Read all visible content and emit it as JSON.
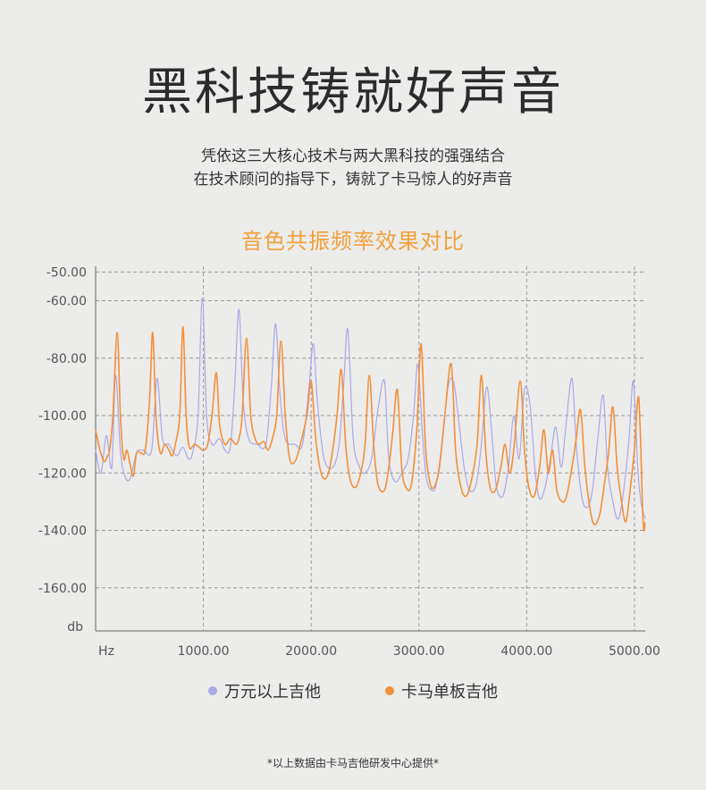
{
  "header": {
    "title": "黑科技铸就好声音",
    "subtitle_line1": "凭依这三大核心技术与两大黑科技的强强结合",
    "subtitle_line2": "在技术顾问的指导下，铸就了卡马惊人的好声音"
  },
  "chart_title": "音色共振频率效果对比",
  "footnote": "*以上数据由卡马吉他研发中心提供*",
  "colors": {
    "series_premium": "#a9a8e6",
    "series_kama": "#f3903a",
    "title_accent": "#f2a03a"
  },
  "chart_data": {
    "type": "line",
    "title": "音色共振频率效果对比",
    "xlabel": "Hz",
    "ylabel": "db",
    "xlim": [
      0,
      5100
    ],
    "ylim": [
      -175,
      -48
    ],
    "x_ticks": [
      {
        "value": 1000,
        "label": "1000.00"
      },
      {
        "value": 2000,
        "label": "2000.00"
      },
      {
        "value": 3000,
        "label": "3000.00"
      },
      {
        "value": 4000,
        "label": "4000.00"
      },
      {
        "value": 5000,
        "label": "5000.00"
      }
    ],
    "y_ticks": [
      {
        "value": -50,
        "label": "-50.00"
      },
      {
        "value": -60,
        "label": "-60.00"
      },
      {
        "value": -80,
        "label": "-80.00"
      },
      {
        "value": -100,
        "label": "-100.00"
      },
      {
        "value": -120,
        "label": "-120.00"
      },
      {
        "value": -140,
        "label": "-140.00"
      },
      {
        "value": -160,
        "label": "-160.00"
      }
    ],
    "grid": true,
    "legend_position": "bottom-center",
    "series": [
      {
        "name": "万元以上吉他",
        "color": "#a9a8e6",
        "points": [
          [
            0,
            -112
          ],
          [
            50,
            -120
          ],
          [
            100,
            -107
          ],
          [
            150,
            -118
          ],
          [
            185,
            -86
          ],
          [
            230,
            -112
          ],
          [
            270,
            -121
          ],
          [
            320,
            -122
          ],
          [
            380,
            -113
          ],
          [
            440,
            -112
          ],
          [
            520,
            -112
          ],
          [
            570,
            -87
          ],
          [
            620,
            -108
          ],
          [
            680,
            -110
          ],
          [
            750,
            -114
          ],
          [
            810,
            -111
          ],
          [
            860,
            -115
          ],
          [
            900,
            -113
          ],
          [
            950,
            -100
          ],
          [
            990,
            -59
          ],
          [
            1030,
            -100
          ],
          [
            1080,
            -110
          ],
          [
            1150,
            -108
          ],
          [
            1200,
            -112
          ],
          [
            1250,
            -111
          ],
          [
            1290,
            -90
          ],
          [
            1330,
            -63
          ],
          [
            1370,
            -95
          ],
          [
            1420,
            -108
          ],
          [
            1500,
            -110
          ],
          [
            1580,
            -110
          ],
          [
            1630,
            -90
          ],
          [
            1670,
            -68
          ],
          [
            1710,
            -92
          ],
          [
            1760,
            -108
          ],
          [
            1850,
            -110
          ],
          [
            1920,
            -110
          ],
          [
            1980,
            -90
          ],
          [
            2020,
            -75
          ],
          [
            2060,
            -96
          ],
          [
            2120,
            -115
          ],
          [
            2200,
            -118
          ],
          [
            2260,
            -110
          ],
          [
            2300,
            -90
          ],
          [
            2340,
            -70
          ],
          [
            2390,
            -108
          ],
          [
            2450,
            -118
          ],
          [
            2500,
            -120
          ],
          [
            2560,
            -115
          ],
          [
            2620,
            -98
          ],
          [
            2680,
            -88
          ],
          [
            2720,
            -115
          ],
          [
            2780,
            -123
          ],
          [
            2840,
            -120
          ],
          [
            2900,
            -115
          ],
          [
            2950,
            -100
          ],
          [
            2990,
            -82
          ],
          [
            3030,
            -105
          ],
          [
            3070,
            -122
          ],
          [
            3120,
            -126
          ],
          [
            3160,
            -124
          ],
          [
            3220,
            -108
          ],
          [
            3270,
            -90
          ],
          [
            3320,
            -88
          ],
          [
            3370,
            -102
          ],
          [
            3420,
            -118
          ],
          [
            3470,
            -126
          ],
          [
            3530,
            -124
          ],
          [
            3580,
            -110
          ],
          [
            3630,
            -90
          ],
          [
            3680,
            -108
          ],
          [
            3720,
            -125
          ],
          [
            3780,
            -128
          ],
          [
            3830,
            -118
          ],
          [
            3880,
            -100
          ],
          [
            3930,
            -115
          ],
          [
            3980,
            -91
          ],
          [
            4030,
            -96
          ],
          [
            4080,
            -120
          ],
          [
            4120,
            -129
          ],
          [
            4170,
            -125
          ],
          [
            4220,
            -115
          ],
          [
            4270,
            -104
          ],
          [
            4320,
            -118
          ],
          [
            4360,
            -105
          ],
          [
            4420,
            -87
          ],
          [
            4460,
            -110
          ],
          [
            4510,
            -128
          ],
          [
            4560,
            -132
          ],
          [
            4610,
            -126
          ],
          [
            4660,
            -108
          ],
          [
            4710,
            -93
          ],
          [
            4750,
            -118
          ],
          [
            4800,
            -130
          ],
          [
            4850,
            -136
          ],
          [
            4900,
            -126
          ],
          [
            4950,
            -108
          ],
          [
            4990,
            -88
          ],
          [
            5030,
            -118
          ],
          [
            5060,
            -130
          ],
          [
            5100,
            -136
          ]
        ]
      },
      {
        "name": "卡马单板吉他",
        "color": "#f3903a",
        "points": [
          [
            0,
            -105
          ],
          [
            40,
            -112
          ],
          [
            80,
            -116
          ],
          [
            110,
            -114
          ],
          [
            130,
            -112
          ],
          [
            160,
            -100
          ],
          [
            200,
            -71
          ],
          [
            230,
            -100
          ],
          [
            260,
            -115
          ],
          [
            290,
            -112
          ],
          [
            320,
            -117
          ],
          [
            350,
            -121
          ],
          [
            380,
            -113
          ],
          [
            420,
            -113
          ],
          [
            460,
            -112
          ],
          [
            500,
            -95
          ],
          [
            530,
            -71
          ],
          [
            560,
            -100
          ],
          [
            600,
            -113
          ],
          [
            640,
            -110
          ],
          [
            680,
            -112
          ],
          [
            710,
            -114
          ],
          [
            740,
            -110
          ],
          [
            780,
            -100
          ],
          [
            810,
            -69
          ],
          [
            840,
            -100
          ],
          [
            870,
            -111
          ],
          [
            920,
            -110
          ],
          [
            960,
            -111
          ],
          [
            1000,
            -112
          ],
          [
            1040,
            -110
          ],
          [
            1080,
            -100
          ],
          [
            1120,
            -85
          ],
          [
            1150,
            -103
          ],
          [
            1200,
            -110
          ],
          [
            1250,
            -108
          ],
          [
            1300,
            -110
          ],
          [
            1330,
            -108
          ],
          [
            1360,
            -100
          ],
          [
            1400,
            -73
          ],
          [
            1440,
            -100
          ],
          [
            1480,
            -108
          ],
          [
            1520,
            -110
          ],
          [
            1560,
            -109
          ],
          [
            1600,
            -112
          ],
          [
            1640,
            -108
          ],
          [
            1680,
            -100
          ],
          [
            1720,
            -74
          ],
          [
            1760,
            -100
          ],
          [
            1800,
            -115
          ],
          [
            1850,
            -116
          ],
          [
            1900,
            -110
          ],
          [
            1960,
            -100
          ],
          [
            2000,
            -88
          ],
          [
            2040,
            -107
          ],
          [
            2080,
            -118
          ],
          [
            2120,
            -122
          ],
          [
            2160,
            -120
          ],
          [
            2200,
            -112
          ],
          [
            2240,
            -100
          ],
          [
            2280,
            -84
          ],
          [
            2320,
            -110
          ],
          [
            2360,
            -122
          ],
          [
            2410,
            -125
          ],
          [
            2460,
            -120
          ],
          [
            2500,
            -110
          ],
          [
            2540,
            -86
          ],
          [
            2580,
            -110
          ],
          [
            2620,
            -124
          ],
          [
            2680,
            -126
          ],
          [
            2720,
            -118
          ],
          [
            2760,
            -105
          ],
          [
            2800,
            -91
          ],
          [
            2840,
            -118
          ],
          [
            2880,
            -125
          ],
          [
            2930,
            -124
          ],
          [
            2980,
            -105
          ],
          [
            3020,
            -75
          ],
          [
            3060,
            -110
          ],
          [
            3100,
            -123
          ],
          [
            3140,
            -125
          ],
          [
            3190,
            -118
          ],
          [
            3240,
            -100
          ],
          [
            3300,
            -82
          ],
          [
            3340,
            -112
          ],
          [
            3390,
            -125
          ],
          [
            3440,
            -128
          ],
          [
            3490,
            -122
          ],
          [
            3540,
            -110
          ],
          [
            3580,
            -86
          ],
          [
            3620,
            -112
          ],
          [
            3660,
            -125
          ],
          [
            3710,
            -126
          ],
          [
            3760,
            -118
          ],
          [
            3800,
            -110
          ],
          [
            3840,
            -120
          ],
          [
            3880,
            -112
          ],
          [
            3940,
            -88
          ],
          [
            3980,
            -112
          ],
          [
            4020,
            -125
          ],
          [
            4070,
            -128
          ],
          [
            4120,
            -118
          ],
          [
            4160,
            -105
          ],
          [
            4200,
            -120
          ],
          [
            4240,
            -112
          ],
          [
            4280,
            -126
          ],
          [
            4330,
            -130
          ],
          [
            4370,
            -128
          ],
          [
            4420,
            -118
          ],
          [
            4460,
            -108
          ],
          [
            4500,
            -98
          ],
          [
            4540,
            -118
          ],
          [
            4590,
            -133
          ],
          [
            4630,
            -138
          ],
          [
            4680,
            -134
          ],
          [
            4720,
            -124
          ],
          [
            4760,
            -113
          ],
          [
            4800,
            -97
          ],
          [
            4840,
            -118
          ],
          [
            4880,
            -130
          ],
          [
            4920,
            -137
          ],
          [
            4960,
            -126
          ],
          [
            5000,
            -112
          ],
          [
            5040,
            -94
          ],
          [
            5080,
            -137
          ],
          [
            5100,
            -137
          ]
        ]
      }
    ]
  }
}
